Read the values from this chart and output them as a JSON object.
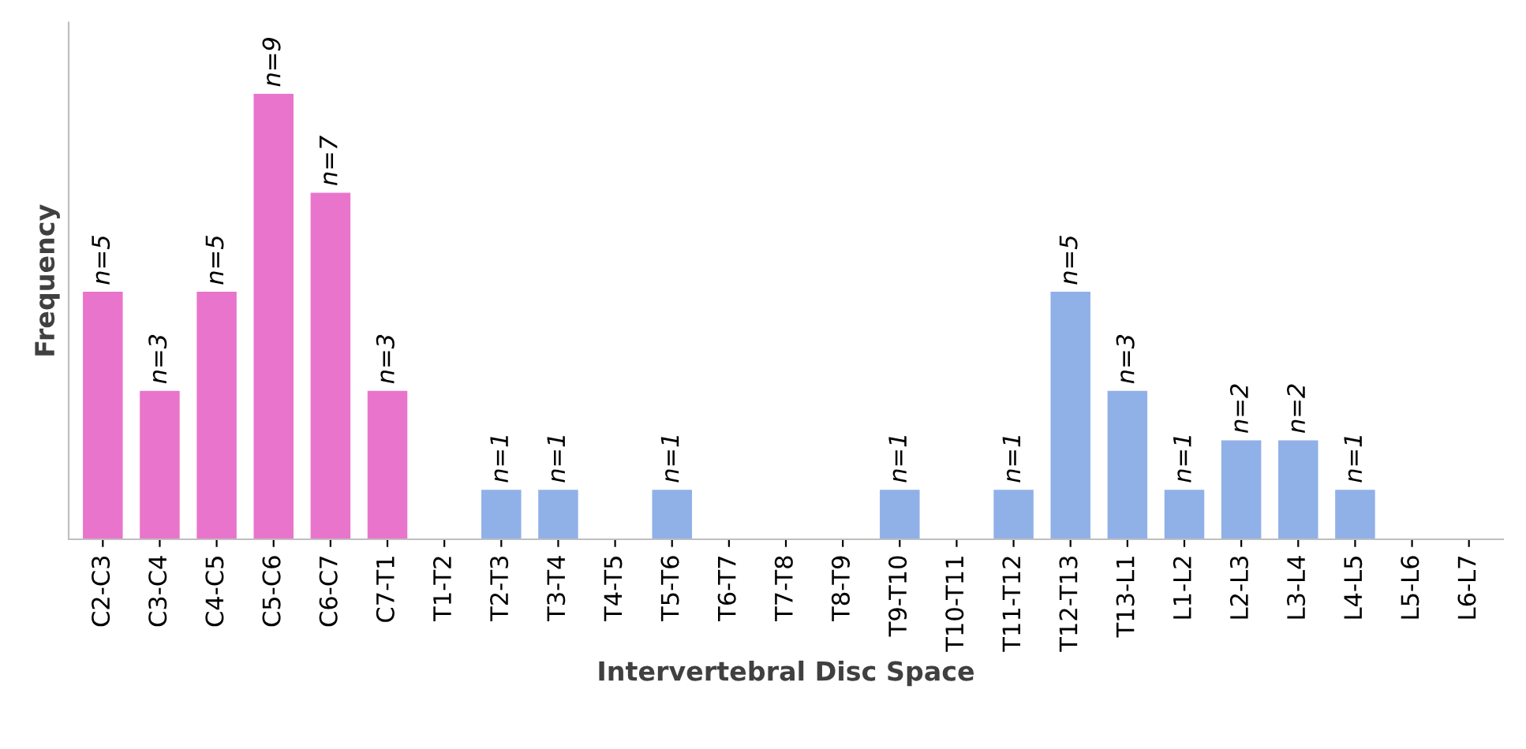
{
  "chart_data": {
    "type": "bar",
    "xlabel": "Intervertebral Disc Space",
    "ylabel": "Frequency",
    "categories": [
      "C2-C3",
      "C3-C4",
      "C4-C5",
      "C5-C6",
      "C6-C7",
      "C7-T1",
      "T1-T2",
      "T2-T3",
      "T3-T4",
      "T4-T5",
      "T5-T6",
      "T6-T7",
      "T7-T8",
      "T8-T9",
      "T9-T10",
      "T10-T11",
      "T11-T12",
      "T12-T13",
      "T13-L1",
      "L1-L2",
      "L2-L3",
      "L3-L4",
      "L4-L5",
      "L5-L6",
      "L6-L7"
    ],
    "values": [
      5,
      3,
      5,
      9,
      7,
      3,
      0,
      1,
      1,
      0,
      1,
      0,
      0,
      0,
      1,
      0,
      1,
      5,
      3,
      1,
      2,
      2,
      1,
      0,
      0
    ],
    "colors": [
      "#e974cc",
      "#e974cc",
      "#e974cc",
      "#e974cc",
      "#e974cc",
      "#e974cc",
      "#90b0e8",
      "#90b0e8",
      "#90b0e8",
      "#90b0e8",
      "#90b0e8",
      "#90b0e8",
      "#90b0e8",
      "#90b0e8",
      "#90b0e8",
      "#90b0e8",
      "#90b0e8",
      "#90b0e8",
      "#90b0e8",
      "#90b0e8",
      "#90b0e8",
      "#90b0e8",
      "#90b0e8",
      "#90b0e8",
      "#90b0e8"
    ],
    "value_labels": [
      "n=5",
      "n=3",
      "n=5",
      "n=9",
      "n=7",
      "n=3",
      null,
      "n=1",
      "n=1",
      null,
      "n=1",
      null,
      null,
      null,
      "n=1",
      null,
      "n=1",
      "n=5",
      "n=3",
      "n=1",
      "n=2",
      "n=2",
      "n=1",
      null,
      null
    ],
    "tick_labels": "x",
    "grid": false,
    "legend": false
  }
}
